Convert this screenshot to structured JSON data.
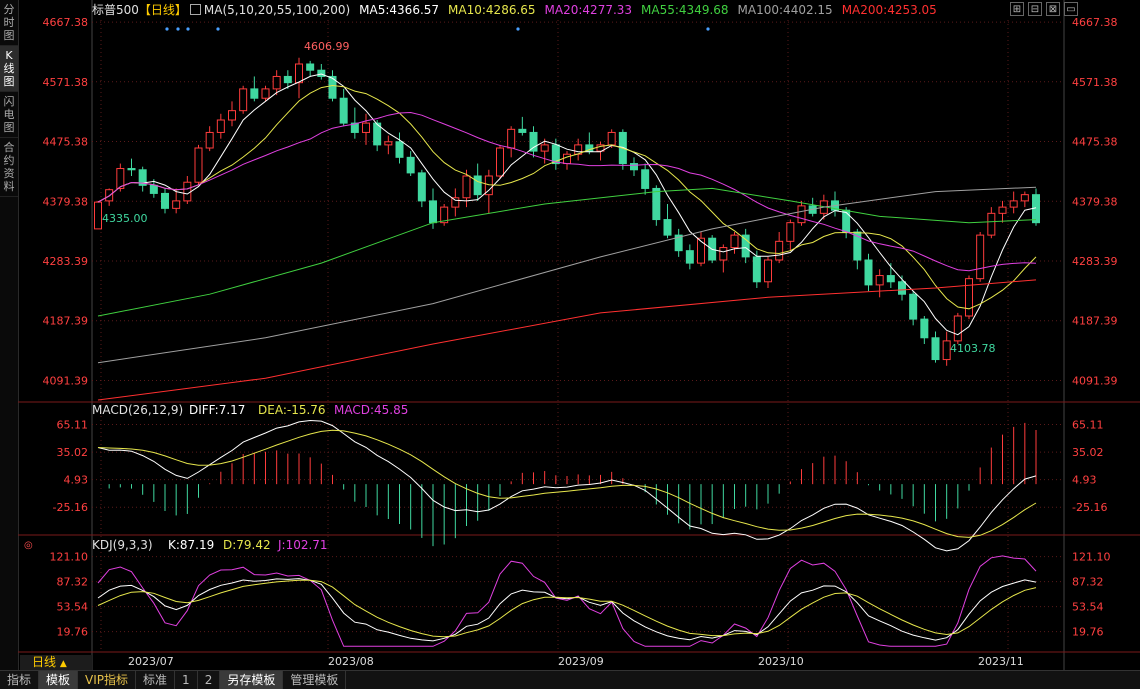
{
  "sidebar": {
    "tabs": [
      {
        "label": "分时图",
        "active": false
      },
      {
        "label": "K线图",
        "active": true
      },
      {
        "label": "闪电图",
        "active": false
      },
      {
        "label": "合约资料",
        "active": false
      }
    ]
  },
  "header": {
    "symbol": "标普500",
    "period_tag": "【日线】",
    "ma_icon": "square-icon",
    "ma_legend": [
      {
        "text": "MA(5,10,20,55,100,200)",
        "color": "#e0e0e0"
      },
      {
        "text": "MA5:4366.57",
        "color": "#ffffff"
      },
      {
        "text": "MA10:4286.65",
        "color": "#e6e64c"
      },
      {
        "text": "MA20:4277.33",
        "color": "#e040e0"
      },
      {
        "text": "MA55:4349.68",
        "color": "#40d040"
      },
      {
        "text": "MA100:4402.15",
        "color": "#a0a0a0"
      },
      {
        "text": "MA200:4253.05",
        "color": "#ff3030"
      }
    ],
    "window_buttons": [
      "⊞",
      "⊟",
      "⊠",
      "▭"
    ]
  },
  "price_panel": {
    "y_ticks": [
      "4667.38",
      "4571.38",
      "4475.38",
      "4379.38",
      "4283.39",
      "4187.39",
      "4091.39"
    ],
    "high_annotation": "4606.99",
    "low_annotation_left": "4335.00",
    "low_annotation_right": "4103.78"
  },
  "macd_panel": {
    "legend": [
      {
        "text": "MACD(26,12,9)",
        "color": "#e0e0e0"
      },
      {
        "text": "DIFF:7.17",
        "color": "#ffffff"
      },
      {
        "text": "DEA:-15.76",
        "color": "#e6e64c"
      },
      {
        "text": "MACD:45.85",
        "color": "#e040e0"
      }
    ],
    "y_ticks": [
      "65.11",
      "35.02",
      "4.93",
      "-25.16"
    ]
  },
  "kdj_panel": {
    "legend": [
      {
        "text": "KDJ(9,3,3)",
        "color": "#e0e0e0"
      },
      {
        "text": "K:87.19",
        "color": "#ffffff"
      },
      {
        "text": "D:79.42",
        "color": "#e6e64c"
      },
      {
        "text": "J:102.71",
        "color": "#e040e0"
      }
    ],
    "y_ticks": [
      "121.10",
      "87.32",
      "53.54",
      "19.76"
    ]
  },
  "x_axis": {
    "labels": [
      "2023/07",
      "2023/08",
      "2023/09",
      "2023/10",
      "2023/11"
    ]
  },
  "period_label": "日线",
  "bottom_tabs": [
    {
      "label": "指标",
      "active": false,
      "vip": false
    },
    {
      "label": "模板",
      "active": true,
      "vip": false
    },
    {
      "label": "VIP指标",
      "active": false,
      "vip": true
    },
    {
      "label": "标准",
      "active": false,
      "vip": false
    },
    {
      "label": "1",
      "active": false,
      "vip": false
    },
    {
      "label": "2",
      "active": false,
      "vip": false
    },
    {
      "label": "另存模板",
      "active": true,
      "vip": false
    },
    {
      "label": "管理模板",
      "active": false,
      "vip": false
    }
  ],
  "colors": {
    "up": "#ff3c3c",
    "down": "#40d8a0",
    "axis_red": "#ff4040",
    "grid": "#5a1a1a"
  },
  "chart_data": {
    "type": "candlestick",
    "title": "标普500",
    "ylim": [
      4060,
      4690
    ],
    "y_ticks": [
      4667.38,
      4571.38,
      4475.38,
      4379.38,
      4283.39,
      4187.39,
      4091.39
    ],
    "x_labels": [
      "2023/07",
      "2023/08",
      "2023/09",
      "2023/10",
      "2023/11"
    ],
    "candles": [
      [
        4335,
        4380,
        4335,
        4378
      ],
      [
        4380,
        4400,
        4372,
        4398
      ],
      [
        4400,
        4440,
        4395,
        4432
      ],
      [
        4432,
        4448,
        4420,
        4430
      ],
      [
        4430,
        4435,
        4395,
        4405
      ],
      [
        4405,
        4415,
        4385,
        4392
      ],
      [
        4392,
        4400,
        4360,
        4368
      ],
      [
        4368,
        4400,
        4360,
        4380
      ],
      [
        4380,
        4420,
        4375,
        4410
      ],
      [
        4410,
        4470,
        4405,
        4465
      ],
      [
        4465,
        4500,
        4460,
        4490
      ],
      [
        4490,
        4520,
        4480,
        4510
      ],
      [
        4510,
        4540,
        4500,
        4525
      ],
      [
        4525,
        4565,
        4520,
        4560
      ],
      [
        4560,
        4580,
        4540,
        4545
      ],
      [
        4545,
        4565,
        4540,
        4560
      ],
      [
        4560,
        4590,
        4550,
        4580
      ],
      [
        4580,
        4590,
        4560,
        4570
      ],
      [
        4570,
        4610,
        4545,
        4600
      ],
      [
        4600,
        4605,
        4580,
        4590
      ],
      [
        4590,
        4600,
        4575,
        4580
      ],
      [
        4580,
        4590,
        4540,
        4545
      ],
      [
        4545,
        4560,
        4500,
        4505
      ],
      [
        4505,
        4530,
        4480,
        4490
      ],
      [
        4490,
        4520,
        4470,
        4505
      ],
      [
        4505,
        4510,
        4460,
        4470
      ],
      [
        4470,
        4485,
        4455,
        4475
      ],
      [
        4475,
        4490,
        4440,
        4450
      ],
      [
        4450,
        4460,
        4420,
        4425
      ],
      [
        4425,
        4430,
        4370,
        4380
      ],
      [
        4380,
        4400,
        4335,
        4345
      ],
      [
        4345,
        4375,
        4340,
        4370
      ],
      [
        4370,
        4400,
        4355,
        4385
      ],
      [
        4385,
        4430,
        4370,
        4420
      ],
      [
        4420,
        4440,
        4380,
        4390
      ],
      [
        4390,
        4430,
        4360,
        4420
      ],
      [
        4420,
        4470,
        4415,
        4465
      ],
      [
        4465,
        4500,
        4450,
        4495
      ],
      [
        4495,
        4515,
        4485,
        4490
      ],
      [
        4490,
        4500,
        4450,
        4460
      ],
      [
        4460,
        4480,
        4440,
        4470
      ],
      [
        4470,
        4480,
        4430,
        4440
      ],
      [
        4440,
        4460,
        4430,
        4455
      ],
      [
        4455,
        4480,
        4445,
        4470
      ],
      [
        4470,
        4490,
        4455,
        4460
      ],
      [
        4460,
        4475,
        4445,
        4470
      ],
      [
        4470,
        4495,
        4465,
        4490
      ],
      [
        4490,
        4495,
        4430,
        4440
      ],
      [
        4440,
        4450,
        4420,
        4430
      ],
      [
        4430,
        4440,
        4390,
        4400
      ],
      [
        4400,
        4405,
        4340,
        4350
      ],
      [
        4350,
        4375,
        4320,
        4325
      ],
      [
        4325,
        4335,
        4290,
        4300
      ],
      [
        4300,
        4310,
        4270,
        4280
      ],
      [
        4280,
        4330,
        4275,
        4320
      ],
      [
        4320,
        4325,
        4280,
        4285
      ],
      [
        4285,
        4310,
        4265,
        4305
      ],
      [
        4305,
        4330,
        4295,
        4325
      ],
      [
        4325,
        4335,
        4280,
        4290
      ],
      [
        4290,
        4300,
        4240,
        4250
      ],
      [
        4250,
        4290,
        4240,
        4285
      ],
      [
        4285,
        4330,
        4280,
        4315
      ],
      [
        4315,
        4350,
        4300,
        4345
      ],
      [
        4345,
        4380,
        4340,
        4372
      ],
      [
        4372,
        4385,
        4355,
        4360
      ],
      [
        4360,
        4390,
        4350,
        4380
      ],
      [
        4380,
        4395,
        4355,
        4365
      ],
      [
        4365,
        4370,
        4320,
        4330
      ],
      [
        4330,
        4335,
        4270,
        4285
      ],
      [
        4285,
        4295,
        4235,
        4245
      ],
      [
        4245,
        4270,
        4225,
        4260
      ],
      [
        4260,
        4280,
        4240,
        4250
      ],
      [
        4250,
        4260,
        4220,
        4230
      ],
      [
        4230,
        4235,
        4180,
        4190
      ],
      [
        4190,
        4195,
        4150,
        4160
      ],
      [
        4160,
        4170,
        4120,
        4125
      ],
      [
        4125,
        4170,
        4115,
        4155
      ],
      [
        4155,
        4200,
        4150,
        4195
      ],
      [
        4195,
        4260,
        4190,
        4255
      ],
      [
        4255,
        4330,
        4250,
        4325
      ],
      [
        4325,
        4370,
        4320,
        4360
      ],
      [
        4360,
        4380,
        4345,
        4370
      ],
      [
        4370,
        4395,
        4360,
        4380
      ],
      [
        4380,
        4395,
        4370,
        4390
      ],
      [
        4390,
        4400,
        4340,
        4345
      ]
    ]
  }
}
